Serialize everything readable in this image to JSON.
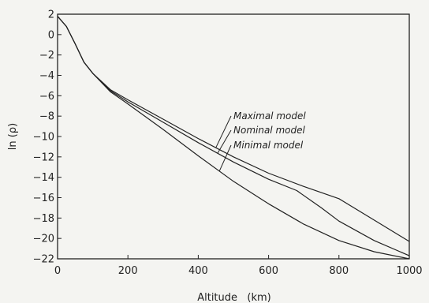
{
  "chart_data": {
    "type": "line",
    "title": "",
    "xlabel": "Altitude   (km)",
    "ylabel": "ln (ρ)",
    "xlim": [
      0,
      1000
    ],
    "ylim": [
      -22,
      2
    ],
    "x_ticks": [
      0,
      200,
      400,
      600,
      800,
      1000
    ],
    "y_ticks": [
      2,
      0,
      -2,
      -4,
      -6,
      -8,
      -10,
      -12,
      -14,
      -16,
      -18,
      -20,
      -22
    ],
    "x_tick_labels": [
      "0",
      "200",
      "400",
      "600",
      "800",
      "1000"
    ],
    "y_tick_labels": [
      "2",
      "0",
      "−2",
      "−4",
      "−6",
      "−8",
      "−10",
      "−12",
      "−14",
      "−16",
      "−18",
      "−20",
      "−22"
    ],
    "grid": false,
    "legend": "none",
    "series": [
      {
        "name": "Maximal model",
        "x": [
          0,
          25,
          50,
          75,
          100,
          150,
          200,
          300,
          400,
          500,
          600,
          700,
          800,
          900,
          1000
        ],
        "y": [
          1.8,
          0.8,
          -0.9,
          -2.7,
          -3.8,
          -5.4,
          -6.4,
          -8.3,
          -10.2,
          -12.0,
          -13.6,
          -14.9,
          -16.1,
          -18.2,
          -20.3
        ]
      },
      {
        "name": "Nominal model",
        "x": [
          0,
          25,
          50,
          75,
          100,
          150,
          200,
          300,
          400,
          500,
          600,
          680,
          750,
          800,
          900,
          1000
        ],
        "y": [
          1.8,
          0.8,
          -0.9,
          -2.7,
          -3.8,
          -5.5,
          -6.6,
          -8.6,
          -10.6,
          -12.5,
          -14.2,
          -15.3,
          -17.0,
          -18.3,
          -20.2,
          -21.7
        ]
      },
      {
        "name": "Minimal model",
        "x": [
          0,
          25,
          50,
          75,
          100,
          150,
          200,
          300,
          400,
          500,
          600,
          700,
          800,
          900,
          1000
        ],
        "y": [
          1.8,
          0.8,
          -0.9,
          -2.7,
          -3.8,
          -5.6,
          -6.8,
          -9.3,
          -11.9,
          -14.4,
          -16.6,
          -18.6,
          -20.2,
          -21.3,
          -22.0
        ]
      }
    ],
    "annotations": [
      {
        "text": "Maximal model",
        "series": 0
      },
      {
        "text": "Nominal model",
        "series": 1
      },
      {
        "text": "Minimal model",
        "series": 2
      }
    ]
  }
}
